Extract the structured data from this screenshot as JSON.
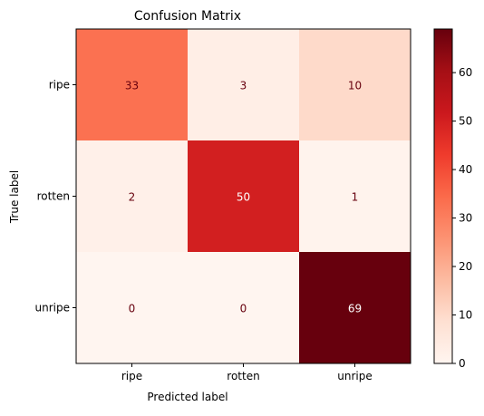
{
  "chart_data": {
    "type": "heatmap",
    "title": "Confusion Matrix",
    "xlabel": "Predicted label",
    "ylabel": "True label",
    "x_categories": [
      "ripe",
      "rotten",
      "unripe"
    ],
    "y_categories": [
      "ripe",
      "rotten",
      "unripe"
    ],
    "values": [
      [
        33,
        3,
        10
      ],
      [
        2,
        50,
        1
      ],
      [
        0,
        0,
        69
      ]
    ],
    "colormap": "Reds",
    "colorbar": {
      "min": 0,
      "max": 69,
      "ticks": [
        0,
        10,
        20,
        30,
        40,
        50,
        60
      ]
    },
    "text_colors": {
      "dark_cell": "#ffffff",
      "light_cell": "#67000d"
    },
    "grid": false
  }
}
